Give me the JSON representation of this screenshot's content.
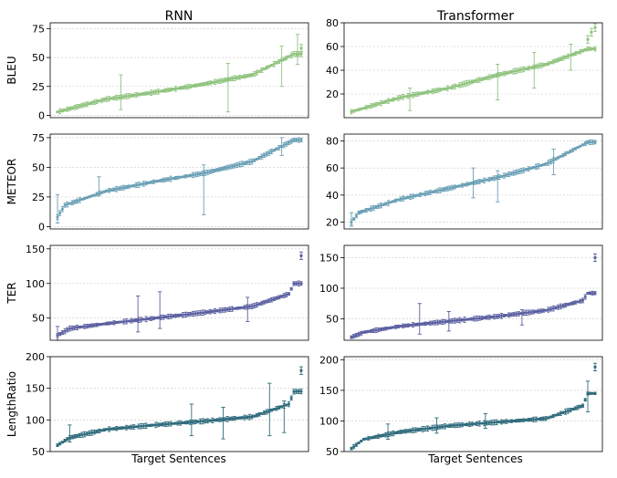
{
  "columns": [
    "RNN",
    "Transformer"
  ],
  "xlabel": "Target Sentences",
  "chart_data": [
    {
      "type": "scatter",
      "panel": "BLEU-RNN",
      "ylabel": "BLEU",
      "xlabel": "",
      "title": "RNN",
      "color": "#8fc37e",
      "ylim": [
        -2,
        80
      ],
      "yticks": [
        0,
        25,
        50,
        75
      ],
      "grid": true,
      "n_points": 100,
      "curve": {
        "start": 3,
        "end": 53,
        "warp": [
          [
            0.2,
            14
          ],
          [
            0.4,
            20
          ],
          [
            0.6,
            27
          ],
          [
            0.8,
            35
          ]
        ]
      },
      "outliers": [
        {
          "at": 1.0,
          "value": 58
        }
      ],
      "large_error_bars": [
        {
          "at": 0.26,
          "low": 5,
          "high": 35
        },
        {
          "at": 0.7,
          "low": 3,
          "high": 45
        },
        {
          "at": 0.92,
          "low": 25,
          "high": 60
        },
        {
          "at": 0.985,
          "low": 44,
          "high": 70
        }
      ]
    },
    {
      "type": "scatter",
      "panel": "BLEU-Transformer",
      "ylabel": "",
      "xlabel": "",
      "title": "Transformer",
      "color": "#8fc37e",
      "ylim": [
        0,
        80
      ],
      "yticks": [
        20,
        40,
        60,
        80
      ],
      "grid": true,
      "n_points": 100,
      "curve": {
        "start": 5,
        "end": 58,
        "warp": [
          [
            0.2,
            17
          ],
          [
            0.4,
            25
          ],
          [
            0.6,
            36
          ],
          [
            0.8,
            45
          ]
        ]
      },
      "outliers": [
        {
          "at": 0.97,
          "value": 66
        },
        {
          "at": 0.985,
          "value": 72
        },
        {
          "at": 1.0,
          "value": 76
        }
      ],
      "large_error_bars": [
        {
          "at": 0.24,
          "low": 6,
          "high": 25
        },
        {
          "at": 0.6,
          "low": 15,
          "high": 45
        },
        {
          "at": 0.75,
          "low": 25,
          "high": 55
        },
        {
          "at": 0.9,
          "low": 40,
          "high": 62
        }
      ]
    },
    {
      "type": "scatter",
      "panel": "METEOR-RNN",
      "ylabel": "METEOR",
      "xlabel": "",
      "title": "",
      "color": "#6a9fb5",
      "ylim": [
        -2,
        78
      ],
      "yticks": [
        0,
        25,
        50,
        75
      ],
      "grid": true,
      "n_points": 100,
      "curve": {
        "start": 8,
        "end": 73,
        "warp": [
          [
            0.03,
            18
          ],
          [
            0.2,
            30
          ],
          [
            0.4,
            38
          ],
          [
            0.6,
            45
          ],
          [
            0.8,
            55
          ]
        ]
      },
      "outliers": [],
      "large_error_bars": [
        {
          "at": 0.0,
          "low": 3,
          "high": 27
        },
        {
          "at": 0.17,
          "low": 27,
          "high": 42
        },
        {
          "at": 0.6,
          "low": 10,
          "high": 52
        },
        {
          "at": 0.92,
          "low": 60,
          "high": 75
        }
      ]
    },
    {
      "type": "scatter",
      "panel": "METEOR-Transformer",
      "ylabel": "",
      "xlabel": "",
      "title": "",
      "color": "#6a9fb5",
      "ylim": [
        15,
        85
      ],
      "yticks": [
        20,
        40,
        60,
        80
      ],
      "grid": true,
      "n_points": 100,
      "curve": {
        "start": 20,
        "end": 79,
        "warp": [
          [
            0.03,
            27
          ],
          [
            0.2,
            37
          ],
          [
            0.4,
            45
          ],
          [
            0.6,
            53
          ],
          [
            0.8,
            63
          ]
        ]
      },
      "outliers": [],
      "large_error_bars": [
        {
          "at": 0.0,
          "low": 17,
          "high": 27
        },
        {
          "at": 0.5,
          "low": 38,
          "high": 60
        },
        {
          "at": 0.6,
          "low": 35,
          "high": 58
        },
        {
          "at": 0.83,
          "low": 55,
          "high": 74
        }
      ]
    },
    {
      "type": "scatter",
      "panel": "TER-RNN",
      "ylabel": "TER",
      "xlabel": "",
      "title": "",
      "color": "#5b5fa0",
      "ylim": [
        18,
        155
      ],
      "yticks": [
        50,
        100,
        150
      ],
      "grid": true,
      "n_points": 100,
      "curve": {
        "start": 25,
        "end": 100,
        "warp": [
          [
            0.05,
            35
          ],
          [
            0.2,
            42
          ],
          [
            0.4,
            50
          ],
          [
            0.6,
            58
          ],
          [
            0.8,
            67
          ],
          [
            0.95,
            85
          ]
        ]
      },
      "outliers": [
        {
          "at": 1.0,
          "value": 140
        }
      ],
      "large_error_bars": [
        {
          "at": 0.0,
          "low": 18,
          "high": 38
        },
        {
          "at": 0.33,
          "low": 30,
          "high": 82
        },
        {
          "at": 0.42,
          "low": 35,
          "high": 88
        },
        {
          "at": 0.78,
          "low": 45,
          "high": 80
        }
      ]
    },
    {
      "type": "scatter",
      "panel": "TER-Transformer",
      "ylabel": "",
      "xlabel": "",
      "title": "",
      "color": "#5b5fa0",
      "ylim": [
        15,
        170
      ],
      "yticks": [
        50,
        100,
        150
      ],
      "grid": true,
      "n_points": 100,
      "curve": {
        "start": 20,
        "end": 92,
        "warp": [
          [
            0.05,
            28
          ],
          [
            0.2,
            38
          ],
          [
            0.4,
            46
          ],
          [
            0.6,
            54
          ],
          [
            0.8,
            64
          ],
          [
            0.95,
            80
          ]
        ]
      },
      "outliers": [
        {
          "at": 1.0,
          "value": 150
        }
      ],
      "large_error_bars": [
        {
          "at": 0.28,
          "low": 25,
          "high": 75
        },
        {
          "at": 0.4,
          "low": 30,
          "high": 62
        },
        {
          "at": 0.7,
          "low": 40,
          "high": 65
        }
      ]
    },
    {
      "type": "scatter",
      "panel": "LengthRatio-RNN",
      "ylabel": "LengthRatio",
      "xlabel": "Target Sentences",
      "title": "",
      "color": "#2f6b7c",
      "ylim": [
        50,
        200
      ],
      "yticks": [
        50,
        100,
        150,
        200
      ],
      "grid": true,
      "n_points": 100,
      "curve": {
        "start": 60,
        "end": 145,
        "warp": [
          [
            0.05,
            72
          ],
          [
            0.2,
            85
          ],
          [
            0.4,
            92
          ],
          [
            0.6,
            98
          ],
          [
            0.8,
            105
          ],
          [
            0.95,
            125
          ]
        ]
      },
      "outliers": [
        {
          "at": 1.0,
          "value": 178
        }
      ],
      "large_error_bars": [
        {
          "at": 0.05,
          "low": 65,
          "high": 92
        },
        {
          "at": 0.55,
          "low": 75,
          "high": 125
        },
        {
          "at": 0.68,
          "low": 70,
          "high": 120
        },
        {
          "at": 0.87,
          "low": 75,
          "high": 158
        },
        {
          "at": 0.93,
          "low": 80,
          "high": 130
        }
      ]
    },
    {
      "type": "scatter",
      "panel": "LengthRatio-Transformer",
      "ylabel": "",
      "xlabel": "Target Sentences",
      "title": "",
      "color": "#2f6b7c",
      "ylim": [
        50,
        205
      ],
      "yticks": [
        50,
        100,
        150,
        200
      ],
      "grid": true,
      "n_points": 100,
      "curve": {
        "start": 55,
        "end": 145,
        "warp": [
          [
            0.05,
            70
          ],
          [
            0.2,
            82
          ],
          [
            0.4,
            92
          ],
          [
            0.6,
            98
          ],
          [
            0.8,
            104
          ],
          [
            0.95,
            125
          ]
        ]
      },
      "outliers": [
        {
          "at": 1.0,
          "value": 188
        }
      ],
      "large_error_bars": [
        {
          "at": 0.15,
          "low": 70,
          "high": 95
        },
        {
          "at": 0.35,
          "low": 80,
          "high": 105
        },
        {
          "at": 0.55,
          "low": 88,
          "high": 112
        },
        {
          "at": 0.97,
          "low": 115,
          "high": 165
        }
      ]
    }
  ]
}
